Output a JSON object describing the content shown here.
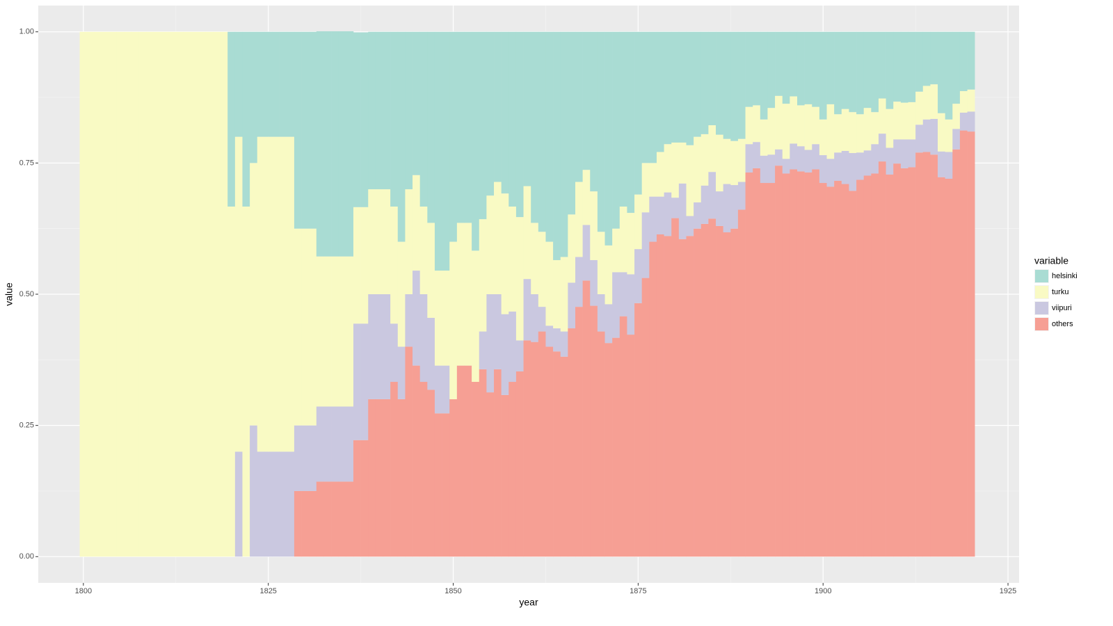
{
  "chart_data": {
    "type": "bar",
    "stacked": true,
    "x_label": "year",
    "y_label": "value",
    "legend_title": "variable",
    "legend_position": "right",
    "grid": true,
    "xlim": [
      1793.9,
      1926.5
    ],
    "ylim": [
      -0.05,
      1.05
    ],
    "xticks": [
      1800,
      1825,
      1850,
      1875,
      1900,
      1925
    ],
    "yticks": [
      {
        "value": 0,
        "label": "0.00"
      },
      {
        "value": 0.25,
        "label": "0.25"
      },
      {
        "value": 0.5,
        "label": "0.50"
      },
      {
        "value": 0.75,
        "label": "0.75"
      },
      {
        "value": 1,
        "label": "1.00"
      }
    ],
    "x": [
      1800,
      1801,
      1802,
      1803,
      1804,
      1805,
      1806,
      1807,
      1808,
      1809,
      1810,
      1811,
      1812,
      1813,
      1814,
      1815,
      1816,
      1817,
      1818,
      1819,
      1820,
      1821,
      1822,
      1823,
      1824,
      1825,
      1826,
      1827,
      1828,
      1829,
      1830,
      1831,
      1832,
      1833,
      1834,
      1835,
      1836,
      1837,
      1838,
      1839,
      1840,
      1841,
      1842,
      1843,
      1844,
      1845,
      1846,
      1847,
      1848,
      1849,
      1850,
      1851,
      1852,
      1853,
      1854,
      1855,
      1856,
      1857,
      1858,
      1859,
      1860,
      1861,
      1862,
      1863,
      1864,
      1865,
      1866,
      1867,
      1868,
      1869,
      1870,
      1871,
      1872,
      1873,
      1874,
      1875,
      1876,
      1877,
      1878,
      1879,
      1880,
      1881,
      1882,
      1883,
      1884,
      1885,
      1886,
      1887,
      1888,
      1889,
      1890,
      1891,
      1892,
      1893,
      1894,
      1895,
      1896,
      1897,
      1898,
      1899,
      1900,
      1901,
      1902,
      1903,
      1904,
      1905,
      1906,
      1907,
      1908,
      1909,
      1910,
      1911,
      1912,
      1913,
      1914,
      1915,
      1916,
      1917,
      1918,
      1919,
      1920
    ],
    "series": [
      {
        "name": "helsinki",
        "color": "#a9dcd3",
        "values": [
          0,
          0,
          0,
          0,
          0,
          0,
          0,
          0,
          0,
          0,
          0,
          0,
          0,
          0,
          0,
          0,
          0,
          0,
          0,
          0,
          0.333,
          0.2,
          0.333,
          0.25,
          0.2,
          0.2,
          0.2,
          0.2,
          0.2,
          0.375,
          0.375,
          0.375,
          0.429,
          0.429,
          0.429,
          0.429,
          0.429,
          0.333,
          0.333,
          0.3,
          0.3,
          0.3,
          0.333,
          0.4,
          0.3,
          0.273,
          0.333,
          0.364,
          0.455,
          0.455,
          0.4,
          0.364,
          0.364,
          0.417,
          0.357,
          0.312,
          0.286,
          0.308,
          0.333,
          0.353,
          0.294,
          0.364,
          0.381,
          0.4,
          0.435,
          0.429,
          0.348,
          0.286,
          0.263,
          0.304,
          0.381,
          0.407,
          0.375,
          0.333,
          0.345,
          0.31,
          0.25,
          0.25,
          0.229,
          0.214,
          0.211,
          0.211,
          0.216,
          0.2,
          0.195,
          0.178,
          0.196,
          0.204,
          0.208,
          0.204,
          0.143,
          0.14,
          0.167,
          0.145,
          0.122,
          0.137,
          0.123,
          0.14,
          0.138,
          0.143,
          0.167,
          0.138,
          0.157,
          0.147,
          0.153,
          0.157,
          0.145,
          0.153,
          0.127,
          0.147,
          0.133,
          0.135,
          0.134,
          0.114,
          0.103,
          0.1,
          0.155,
          0.167,
          0.137,
          0.113,
          0.11
        ]
      },
      {
        "name": "turku",
        "color": "#f9fac4",
        "values": [
          1,
          1,
          1,
          1,
          1,
          1,
          1,
          1,
          1,
          1,
          1,
          1,
          1,
          1,
          1,
          1,
          1,
          1,
          1,
          1,
          0.667,
          0.6,
          0.667,
          0.5,
          0.6,
          0.6,
          0.6,
          0.6,
          0.6,
          0.375,
          0.375,
          0.375,
          0.286,
          0.286,
          0.286,
          0.286,
          0.286,
          0.222,
          0.222,
          0.2,
          0.2,
          0.2,
          0.223,
          0.2,
          0.2,
          0.182,
          0.167,
          0.181,
          0.181,
          0.181,
          0.3,
          0.272,
          0.272,
          0.25,
          0.214,
          0.188,
          0.214,
          0.23,
          0.2,
          0.235,
          0.177,
          0.136,
          0.143,
          0.16,
          0.13,
          0.142,
          0.13,
          0.143,
          0.105,
          0.131,
          0.119,
          0.112,
          0.083,
          0.125,
          0.117,
          0.104,
          0.094,
          0.064,
          0.085,
          0.092,
          0.105,
          0.078,
          0.135,
          0.125,
          0.098,
          0.089,
          0.108,
          0.086,
          0.084,
          0.082,
          0.071,
          0.07,
          0.069,
          0.089,
          0.102,
          0.105,
          0.09,
          0.078,
          0.087,
          0.071,
          0.068,
          0.104,
          0.073,
          0.08,
          0.078,
          0.073,
          0.081,
          0.061,
          0.067,
          0.074,
          0.072,
          0.07,
          0.071,
          0.063,
          0.064,
          0.066,
          0.073,
          0.062,
          0.048,
          0.041,
          0.042
        ]
      },
      {
        "name": "viipuri",
        "color": "#cac8e0",
        "values": [
          0,
          0,
          0,
          0,
          0,
          0,
          0,
          0,
          0,
          0,
          0,
          0,
          0,
          0,
          0,
          0,
          0,
          0,
          0,
          0,
          0,
          0.2,
          0,
          0.25,
          0.2,
          0.2,
          0.2,
          0.2,
          0.2,
          0.125,
          0.125,
          0.125,
          0.143,
          0.143,
          0.143,
          0.143,
          0.143,
          0.222,
          0.222,
          0.2,
          0.2,
          0.2,
          0.111,
          0.1,
          0.1,
          0.181,
          0.167,
          0.137,
          0.091,
          0.091,
          0,
          0,
          0,
          0,
          0.072,
          0.187,
          0.143,
          0.154,
          0.134,
          0.059,
          0.117,
          0.091,
          0.047,
          0.04,
          0.044,
          0.048,
          0.087,
          0.095,
          0.106,
          0.087,
          0.071,
          0.074,
          0.125,
          0.084,
          0.115,
          0.103,
          0.125,
          0.086,
          0.072,
          0.083,
          0.039,
          0.106,
          0.038,
          0.05,
          0.073,
          0.089,
          0.066,
          0.092,
          0.083,
          0.053,
          0.054,
          0.05,
          0.052,
          0.054,
          0.031,
          0.028,
          0.049,
          0.048,
          0.043,
          0.048,
          0.053,
          0.053,
          0.054,
          0.063,
          0.072,
          0.052,
          0.048,
          0.056,
          0.053,
          0.051,
          0.046,
          0.055,
          0.053,
          0.053,
          0.062,
          0.068,
          0.049,
          0.051,
          0.039,
          0.034,
          0.038
        ]
      },
      {
        "name": "others",
        "color": "#f69f94",
        "values": [
          0,
          0,
          0,
          0,
          0,
          0,
          0,
          0,
          0,
          0,
          0,
          0,
          0,
          0,
          0,
          0,
          0,
          0,
          0,
          0,
          0,
          0,
          0,
          0,
          0,
          0,
          0,
          0,
          0,
          0.125,
          0.125,
          0.125,
          0.143,
          0.143,
          0.143,
          0.143,
          0.143,
          0.222,
          0.222,
          0.3,
          0.3,
          0.3,
          0.333,
          0.3,
          0.4,
          0.364,
          0.333,
          0.318,
          0.273,
          0.273,
          0.3,
          0.364,
          0.364,
          0.333,
          0.357,
          0.313,
          0.357,
          0.308,
          0.333,
          0.353,
          0.412,
          0.409,
          0.429,
          0.4,
          0.391,
          0.381,
          0.435,
          0.476,
          0.526,
          0.478,
          0.429,
          0.407,
          0.417,
          0.458,
          0.423,
          0.483,
          0.531,
          0.6,
          0.614,
          0.611,
          0.645,
          0.605,
          0.611,
          0.625,
          0.634,
          0.644,
          0.63,
          0.618,
          0.625,
          0.661,
          0.732,
          0.74,
          0.712,
          0.712,
          0.745,
          0.73,
          0.738,
          0.734,
          0.732,
          0.738,
          0.712,
          0.705,
          0.716,
          0.71,
          0.697,
          0.718,
          0.726,
          0.73,
          0.753,
          0.728,
          0.749,
          0.74,
          0.742,
          0.77,
          0.771,
          0.766,
          0.723,
          0.72,
          0.776,
          0.812,
          0.81
        ]
      }
    ]
  }
}
